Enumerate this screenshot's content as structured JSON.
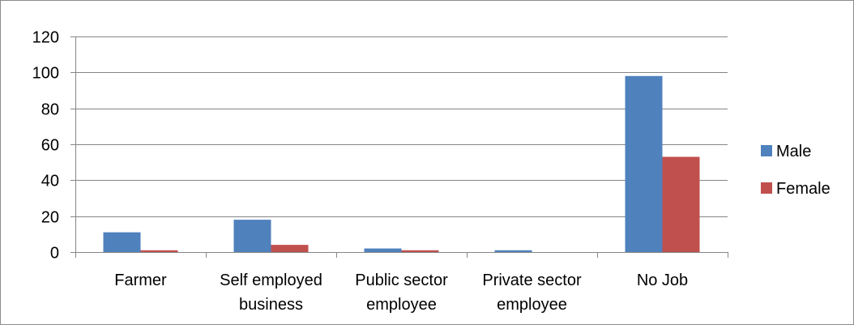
{
  "chart_data": {
    "type": "bar",
    "categories": [
      [
        "Farmer"
      ],
      [
        "Self employed",
        "business"
      ],
      [
        "Public sector",
        "employee"
      ],
      [
        "Private sector",
        "employee"
      ],
      [
        "No Job"
      ]
    ],
    "series": [
      {
        "name": "Male",
        "color": "#4f81bd",
        "values": [
          11,
          18,
          2,
          1,
          98
        ]
      },
      {
        "name": "Female",
        "color": "#c0504d",
        "values": [
          1,
          4,
          1,
          0,
          53
        ]
      }
    ],
    "ylim": [
      0,
      120
    ],
    "yticks": [
      "0",
      "20",
      "40",
      "60",
      "80",
      "100",
      "120"
    ],
    "grid": true,
    "gridline_color": "#868686",
    "legend_position": "right",
    "title": "",
    "xlabel": "",
    "ylabel": ""
  }
}
